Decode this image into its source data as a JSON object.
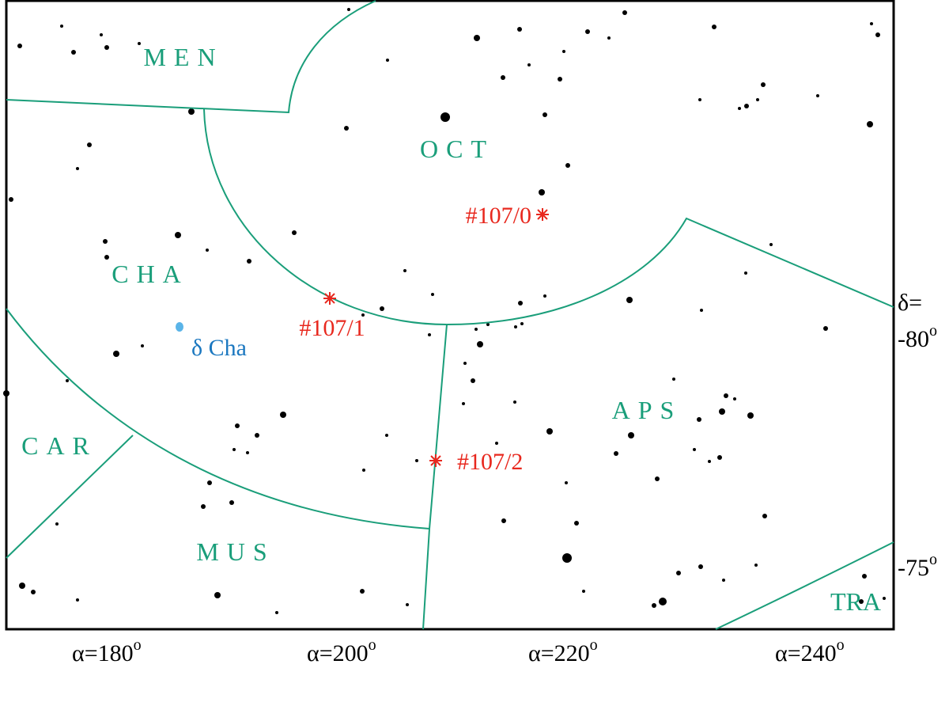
{
  "constellations": [
    "MEN",
    "OCT",
    "CHA",
    "CAR",
    "MUS",
    "APS",
    "TRA"
  ],
  "markers": [
    "#107/0",
    "#107/1",
    "#107/2"
  ],
  "star_label": "δ Cha",
  "ra_labels": [
    {
      "text": "α=180",
      "sup": "o"
    },
    {
      "text": "α=200",
      "sup": "o"
    },
    {
      "text": "α=220",
      "sup": "o"
    },
    {
      "text": "α=240",
      "sup": "o"
    }
  ],
  "dec_title": "δ=",
  "dec_labels": [
    {
      "text": "-80",
      "sup": "o"
    },
    {
      "text": "-75",
      "sup": "o"
    }
  ]
}
